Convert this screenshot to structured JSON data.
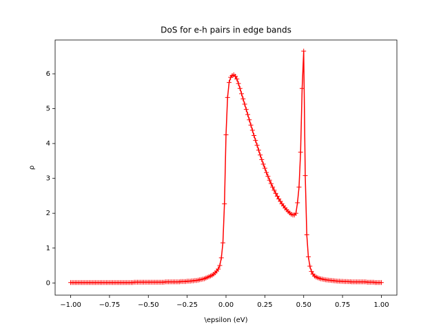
{
  "chart_data": {
    "type": "line",
    "title": "DoS for e-h pairs in edge bands",
    "x_label": "\\epsilon (eV)",
    "y_label": "ρ",
    "xlim": [
      -1.1,
      1.1
    ],
    "ylim": [
      -0.35,
      6.97
    ],
    "xticks": [
      {
        "value": -1,
        "label": "−1.00"
      },
      {
        "value": -0.75,
        "label": "−0.75"
      },
      {
        "value": -0.5,
        "label": "−0.50"
      },
      {
        "value": -0.25,
        "label": "−0.25"
      },
      {
        "value": 0,
        "label": "0.00"
      },
      {
        "value": 0.25,
        "label": "0.25"
      },
      {
        "value": 0.5,
        "label": "0.50"
      },
      {
        "value": 0.75,
        "label": "0.75"
      },
      {
        "value": 1,
        "label": "1.00"
      }
    ],
    "yticks": [
      0,
      1,
      2,
      3,
      4,
      5,
      6
    ],
    "grid": false,
    "x": [
      -1,
      -0.99,
      -0.98,
      -0.97,
      -0.96,
      -0.95,
      -0.94,
      -0.93,
      -0.92,
      -0.91,
      -0.9,
      -0.89,
      -0.88,
      -0.87,
      -0.86,
      -0.85,
      -0.84,
      -0.83,
      -0.82,
      -0.81,
      -0.8,
      -0.79,
      -0.78,
      -0.77,
      -0.76,
      -0.75,
      -0.74,
      -0.73,
      -0.72,
      -0.71,
      -0.7,
      -0.69,
      -0.68,
      -0.67,
      -0.66,
      -0.65,
      -0.64,
      -0.63,
      -0.62,
      -0.61,
      -0.6,
      -0.59,
      -0.58,
      -0.57,
      -0.56,
      -0.55,
      -0.54,
      -0.53,
      -0.52,
      -0.51,
      -0.5,
      -0.49,
      -0.48,
      -0.47,
      -0.46,
      -0.45,
      -0.44,
      -0.43,
      -0.42,
      -0.41,
      -0.4,
      -0.39,
      -0.38,
      -0.37,
      -0.36,
      -0.35,
      -0.34,
      -0.33,
      -0.32,
      -0.31,
      -0.3,
      -0.29,
      -0.28,
      -0.27,
      -0.26,
      -0.25,
      -0.24,
      -0.23,
      -0.22,
      -0.21,
      -0.2,
      -0.19,
      -0.18,
      -0.17,
      -0.16,
      -0.15,
      -0.14,
      -0.13,
      -0.12,
      -0.11,
      -0.1,
      -0.09,
      -0.08,
      -0.07,
      -0.06,
      -0.05,
      -0.04,
      -0.03,
      -0.02,
      -0.01,
      0,
      0.01,
      0.02,
      0.03,
      0.04,
      0.05,
      0.06,
      0.07,
      0.08,
      0.09,
      0.1,
      0.11,
      0.12,
      0.13,
      0.14,
      0.15,
      0.16,
      0.17,
      0.18,
      0.19,
      0.2,
      0.21,
      0.22,
      0.23,
      0.24,
      0.25,
      0.26,
      0.27,
      0.28,
      0.29,
      0.3,
      0.31,
      0.32,
      0.33,
      0.34,
      0.35,
      0.36,
      0.37,
      0.38,
      0.39,
      0.4,
      0.41,
      0.42,
      0.43,
      0.44,
      0.45,
      0.46,
      0.47,
      0.48,
      0.49,
      0.5,
      0.51,
      0.52,
      0.53,
      0.54,
      0.55,
      0.56,
      0.57,
      0.58,
      0.59,
      0.6,
      0.61,
      0.62,
      0.63,
      0.64,
      0.65,
      0.66,
      0.67,
      0.68,
      0.69,
      0.7,
      0.71,
      0.72,
      0.73,
      0.74,
      0.75,
      0.76,
      0.77,
      0.78,
      0.79,
      0.8,
      0.81,
      0.82,
      0.83,
      0.84,
      0.85,
      0.86,
      0.87,
      0.88,
      0.89,
      0.9,
      0.91,
      0.92,
      0.93,
      0.94,
      0.95,
      0.96,
      0.97,
      0.98,
      0.99,
      1
    ],
    "series": [
      {
        "color": "#ff0000",
        "values": [
          0.01,
          0.01,
          0.01,
          0.01,
          0.01,
          0.01,
          0.01,
          0.01,
          0.01,
          0.01,
          0.01,
          0.01,
          0.01,
          0.01,
          0.01,
          0.01,
          0.01,
          0.01,
          0.01,
          0.01,
          0.01,
          0.01,
          0.01,
          0.01,
          0.01,
          0.01,
          0.01,
          0.01,
          0.01,
          0.01,
          0.01,
          0.01,
          0.01,
          0.01,
          0.01,
          0.01,
          0.01,
          0.01,
          0.01,
          0.01,
          0.01,
          0.02,
          0.02,
          0.02,
          0.02,
          0.02,
          0.02,
          0.02,
          0.02,
          0.02,
          0.02,
          0.02,
          0.02,
          0.02,
          0.02,
          0.02,
          0.02,
          0.02,
          0.02,
          0.02,
          0.02,
          0.03,
          0.03,
          0.03,
          0.03,
          0.03,
          0.03,
          0.03,
          0.03,
          0.03,
          0.03,
          0.04,
          0.04,
          0.04,
          0.04,
          0.05,
          0.05,
          0.05,
          0.06,
          0.06,
          0.07,
          0.07,
          0.08,
          0.09,
          0.1,
          0.11,
          0.12,
          0.14,
          0.16,
          0.18,
          0.2,
          0.22,
          0.25,
          0.29,
          0.34,
          0.4,
          0.5,
          0.72,
          1.15,
          2.27,
          4.25,
          5.32,
          5.75,
          5.9,
          5.95,
          5.97,
          5.93,
          5.85,
          5.72,
          5.58,
          5.43,
          5.28,
          5.13,
          4.98,
          4.83,
          4.68,
          4.53,
          4.38,
          4.23,
          4.09,
          3.95,
          3.81,
          3.67,
          3.54,
          3.41,
          3.29,
          3.17,
          3.06,
          2.95,
          2.85,
          2.75,
          2.66,
          2.57,
          2.49,
          2.41,
          2.34,
          2.27,
          2.21,
          2.15,
          2.1,
          2.05,
          2.01,
          1.97,
          1.95,
          1.95,
          2.0,
          2.3,
          2.75,
          3.75,
          5.58,
          6.65,
          3.08,
          1.38,
          0.75,
          0.48,
          0.33,
          0.25,
          0.2,
          0.17,
          0.15,
          0.13,
          0.12,
          0.11,
          0.1,
          0.09,
          0.085,
          0.08,
          0.075,
          0.07,
          0.065,
          0.06,
          0.055,
          0.05,
          0.05,
          0.045,
          0.045,
          0.04,
          0.04,
          0.04,
          0.035,
          0.035,
          0.03,
          0.03,
          0.03,
          0.03,
          0.03,
          0.03,
          0.03,
          0.03,
          0.03,
          0.03,
          0.02,
          0.02,
          0.02,
          0.02,
          0.02,
          0.01,
          0.01,
          0.01,
          0.01,
          0.01
        ]
      }
    ]
  }
}
